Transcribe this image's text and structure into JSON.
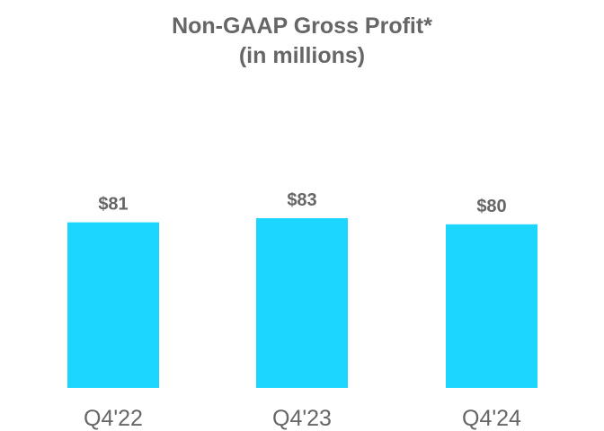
{
  "chart_data": {
    "type": "bar",
    "title": "Non-GAAP Gross Profit*",
    "subtitle": "(in millions)",
    "categories": [
      "Q4'22",
      "Q4'23",
      "Q4'24"
    ],
    "values": [
      81,
      83,
      80
    ],
    "data_labels": [
      "$81",
      "$83",
      "$80"
    ],
    "xlabel": "",
    "ylabel": "",
    "grid": false,
    "legend": "none",
    "bar_color": "#1DD6FF",
    "text_color": "#666666"
  }
}
